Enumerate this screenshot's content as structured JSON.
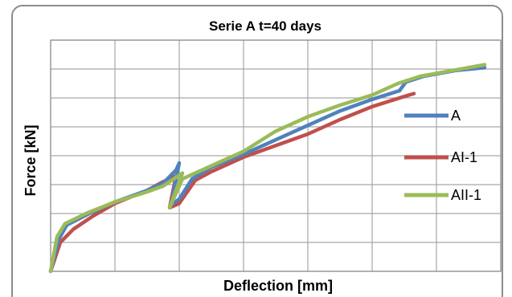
{
  "chart_data": {
    "type": "line",
    "title": "Serie A  t=40 days",
    "xlabel": "Deflection [mm]",
    "ylabel": "Force [kN]",
    "xlim": [
      0,
      14
    ],
    "ylim": [
      0,
      8
    ],
    "x_gridlines": 7,
    "y_gridlines": 8,
    "grid": true,
    "tick_labels_shown": false,
    "legend_position": "right",
    "series": [
      {
        "name": "A",
        "color": "#4f81bd",
        "points": [
          [
            0,
            0
          ],
          [
            0.25,
            1.1
          ],
          [
            0.5,
            1.6
          ],
          [
            1.2,
            2.0
          ],
          [
            2.0,
            2.4
          ],
          [
            3.0,
            2.8
          ],
          [
            3.5,
            3.05
          ],
          [
            3.9,
            3.5
          ],
          [
            4.0,
            3.75
          ],
          [
            3.75,
            2.3
          ],
          [
            4.0,
            2.5
          ],
          [
            4.4,
            3.2
          ],
          [
            5.0,
            3.6
          ],
          [
            6.0,
            4.05
          ],
          [
            7.0,
            4.55
          ],
          [
            8.0,
            5.05
          ],
          [
            9.0,
            5.55
          ],
          [
            10.0,
            5.95
          ],
          [
            10.85,
            6.25
          ],
          [
            11.05,
            6.55
          ],
          [
            11.6,
            6.75
          ],
          [
            12.6,
            6.95
          ],
          [
            13.5,
            7.05
          ]
        ]
      },
      {
        "name": "AI-1",
        "color": "#c0504d",
        "points": [
          [
            0,
            0
          ],
          [
            0.3,
            1.0
          ],
          [
            0.7,
            1.45
          ],
          [
            1.3,
            1.9
          ],
          [
            2.0,
            2.35
          ],
          [
            3.0,
            2.8
          ],
          [
            3.5,
            3.1
          ],
          [
            3.9,
            3.3
          ],
          [
            3.7,
            2.2
          ],
          [
            4.0,
            2.35
          ],
          [
            4.5,
            3.15
          ],
          [
            5.0,
            3.45
          ],
          [
            6.0,
            3.95
          ],
          [
            7.0,
            4.35
          ],
          [
            8.0,
            4.75
          ],
          [
            9.0,
            5.25
          ],
          [
            10.0,
            5.7
          ],
          [
            11.0,
            6.05
          ],
          [
            11.3,
            6.15
          ]
        ]
      },
      {
        "name": "AII-1",
        "color": "#9bbb59",
        "points": [
          [
            0,
            0
          ],
          [
            0.2,
            1.2
          ],
          [
            0.45,
            1.65
          ],
          [
            1.1,
            2.0
          ],
          [
            2.0,
            2.4
          ],
          [
            3.0,
            2.75
          ],
          [
            3.5,
            2.95
          ],
          [
            4.1,
            3.4
          ],
          [
            3.7,
            2.2
          ],
          [
            4.1,
            3.2
          ],
          [
            4.5,
            3.4
          ],
          [
            5.0,
            3.65
          ],
          [
            6.0,
            4.15
          ],
          [
            7.0,
            4.85
          ],
          [
            8.0,
            5.35
          ],
          [
            9.0,
            5.75
          ],
          [
            10.0,
            6.1
          ],
          [
            10.8,
            6.5
          ],
          [
            11.5,
            6.75
          ],
          [
            12.5,
            6.95
          ],
          [
            13.5,
            7.15
          ]
        ]
      }
    ]
  }
}
